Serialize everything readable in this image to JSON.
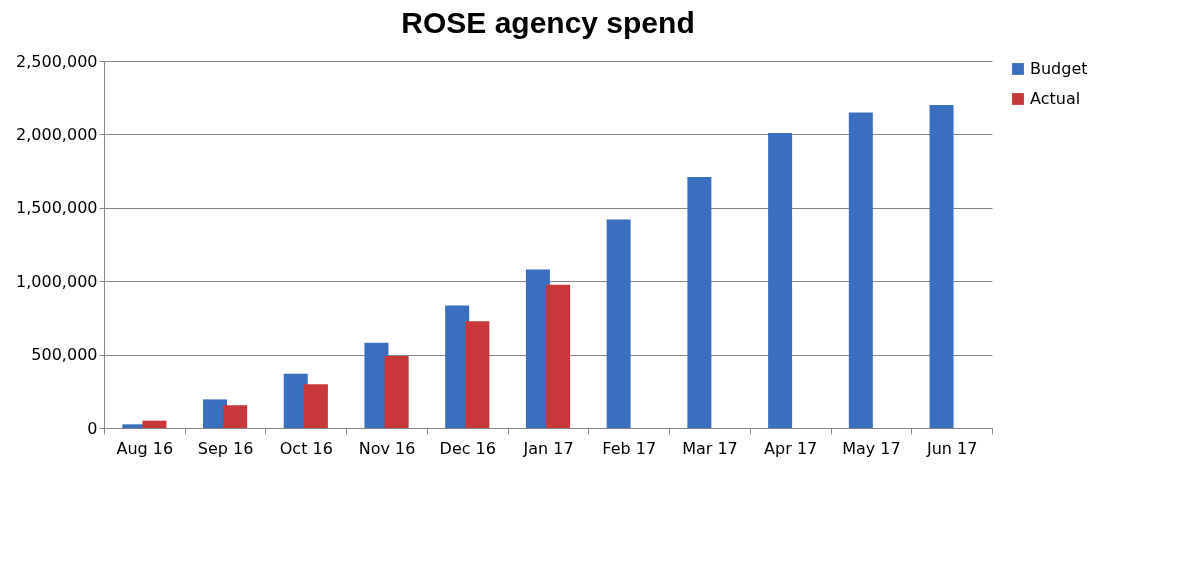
{
  "chart_data": {
    "type": "bar",
    "title": "ROSE agency spend",
    "categories": [
      "Aug 16",
      "Sep 16",
      "Oct 16",
      "Nov 16",
      "Dec 16",
      "Jan 17",
      "Feb 17",
      "Mar 17",
      "Apr 17",
      "May 17",
      "Jun 17"
    ],
    "series": [
      {
        "name": "Budget",
        "color": "#3a6fc0",
        "values": [
          25000,
          195000,
          370000,
          580000,
          835000,
          1080000,
          1420000,
          1710000,
          2010000,
          2150000,
          2200000
        ]
      },
      {
        "name": "Actual",
        "color": "#c8383a",
        "values": [
          50000,
          155000,
          298000,
          490000,
          727000,
          976000,
          null,
          null,
          null,
          null,
          null
        ]
      }
    ],
    "ylim": [
      0,
      2500000
    ],
    "yticks": [
      0,
      {
        "value": 500000,
        "label": "500,000"
      },
      {
        "value": 1000000,
        "label": "1,000,000"
      },
      {
        "value": 1500000,
        "label": "1,500,000"
      },
      {
        "value": 2000000,
        "label": "2,000,000"
      },
      {
        "value": 2500000,
        "label": "2,500,000"
      }
    ],
    "grid": "y",
    "legend": "right"
  }
}
